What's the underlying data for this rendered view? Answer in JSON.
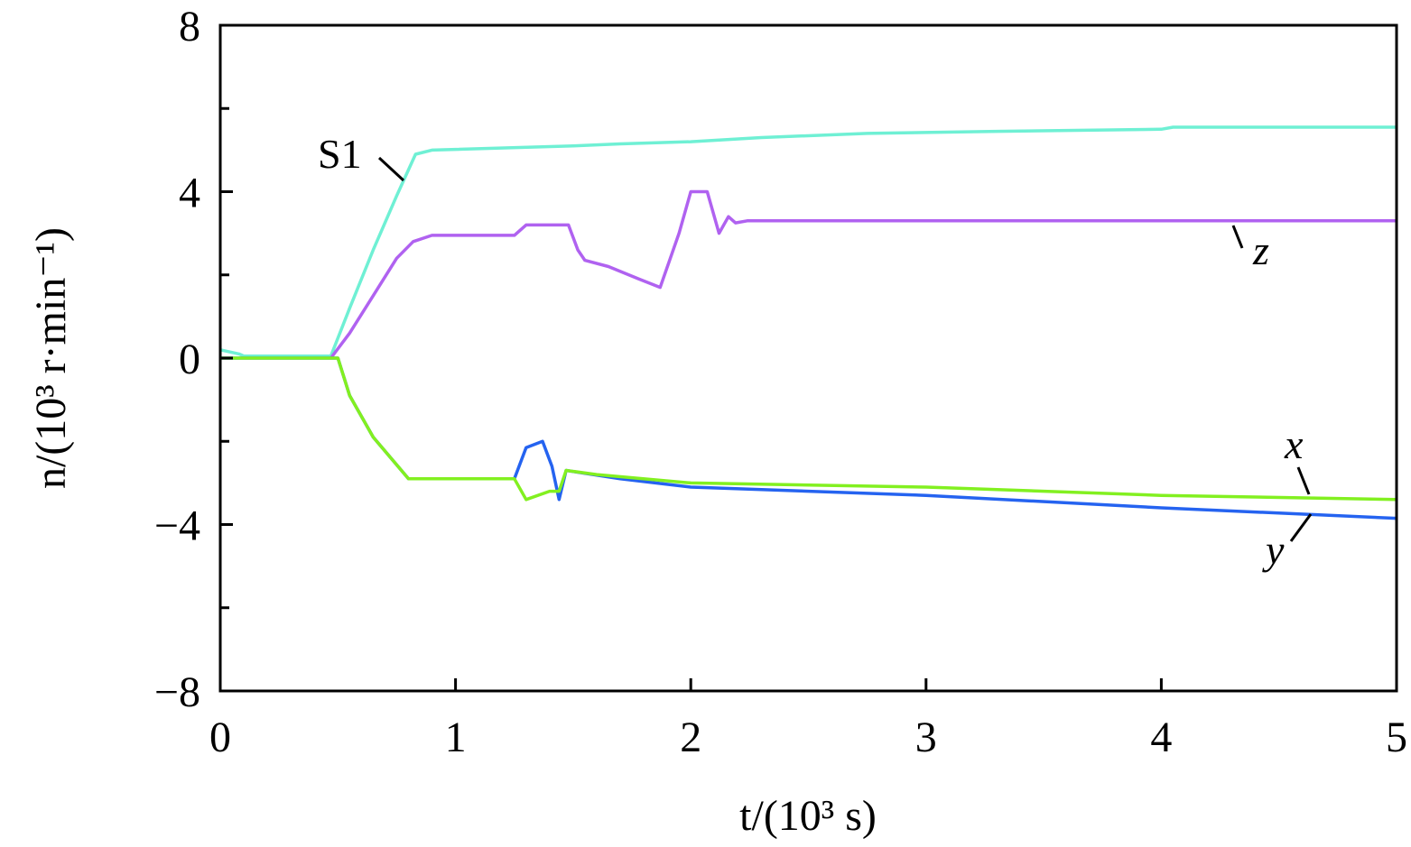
{
  "chart_data": {
    "type": "line",
    "title": "",
    "xlabel": "t/(10³ s)",
    "ylabel": "n/(10³ r·min⁻¹)",
    "xlim": [
      0,
      5
    ],
    "ylim": [
      -8,
      8
    ],
    "xticks": [
      "0",
      "1",
      "2",
      "3",
      "4",
      "5"
    ],
    "yticks": [
      "8",
      "4",
      "0",
      "−4",
      "−8"
    ],
    "grid": false,
    "series": [
      {
        "name": "S1",
        "color": "#6ff0d4",
        "points": [
          [
            0,
            0.2
          ],
          [
            0.08,
            0.1
          ],
          [
            0.1,
            0.05
          ],
          [
            0.47,
            0.05
          ],
          [
            0.55,
            1.2
          ],
          [
            0.65,
            2.6
          ],
          [
            0.75,
            3.9
          ],
          [
            0.83,
            4.9
          ],
          [
            0.9,
            5.0
          ],
          [
            1.5,
            5.1
          ],
          [
            1.7,
            5.15
          ],
          [
            2.0,
            5.2
          ],
          [
            2.3,
            5.3
          ],
          [
            2.75,
            5.4
          ],
          [
            3.3,
            5.45
          ],
          [
            4.0,
            5.5
          ],
          [
            4.05,
            5.55
          ],
          [
            5,
            5.55
          ]
        ]
      },
      {
        "name": "z",
        "color": "#b062f0",
        "points": [
          [
            0.47,
            0.0
          ],
          [
            0.55,
            0.6
          ],
          [
            0.65,
            1.5
          ],
          [
            0.75,
            2.4
          ],
          [
            0.82,
            2.8
          ],
          [
            0.9,
            2.95
          ],
          [
            1.25,
            2.95
          ],
          [
            1.3,
            3.2
          ],
          [
            1.48,
            3.2
          ],
          [
            1.52,
            2.6
          ],
          [
            1.55,
            2.35
          ],
          [
            1.65,
            2.2
          ],
          [
            1.78,
            1.9
          ],
          [
            1.87,
            1.7
          ],
          [
            1.95,
            3.0
          ],
          [
            2.0,
            4.0
          ],
          [
            2.07,
            4.0
          ],
          [
            2.12,
            3.0
          ],
          [
            2.16,
            3.4
          ],
          [
            2.19,
            3.25
          ],
          [
            2.24,
            3.3
          ],
          [
            5,
            3.3
          ]
        ]
      },
      {
        "name": "y",
        "color": "#2563f0",
        "points": [
          [
            0,
            0
          ],
          [
            0.5,
            0
          ],
          [
            0.55,
            -0.9
          ],
          [
            0.65,
            -1.9
          ],
          [
            0.8,
            -2.9
          ],
          [
            1.25,
            -2.9
          ],
          [
            1.3,
            -2.15
          ],
          [
            1.37,
            -2.0
          ],
          [
            1.41,
            -2.6
          ],
          [
            1.44,
            -3.4
          ],
          [
            1.47,
            -2.7
          ],
          [
            1.7,
            -2.9
          ],
          [
            2.0,
            -3.1
          ],
          [
            3.0,
            -3.3
          ],
          [
            4.0,
            -3.6
          ],
          [
            5,
            -3.85
          ]
        ]
      },
      {
        "name": "x",
        "color": "#82f020",
        "points": [
          [
            0,
            0
          ],
          [
            0.5,
            0
          ],
          [
            0.55,
            -0.9
          ],
          [
            0.65,
            -1.9
          ],
          [
            0.8,
            -2.9
          ],
          [
            1.25,
            -2.9
          ],
          [
            1.3,
            -3.4
          ],
          [
            1.4,
            -3.2
          ],
          [
            1.44,
            -3.2
          ],
          [
            1.47,
            -2.7
          ],
          [
            1.6,
            -2.8
          ],
          [
            2.0,
            -3.0
          ],
          [
            3.0,
            -3.1
          ],
          [
            4.0,
            -3.3
          ],
          [
            5,
            -3.4
          ]
        ]
      }
    ]
  }
}
